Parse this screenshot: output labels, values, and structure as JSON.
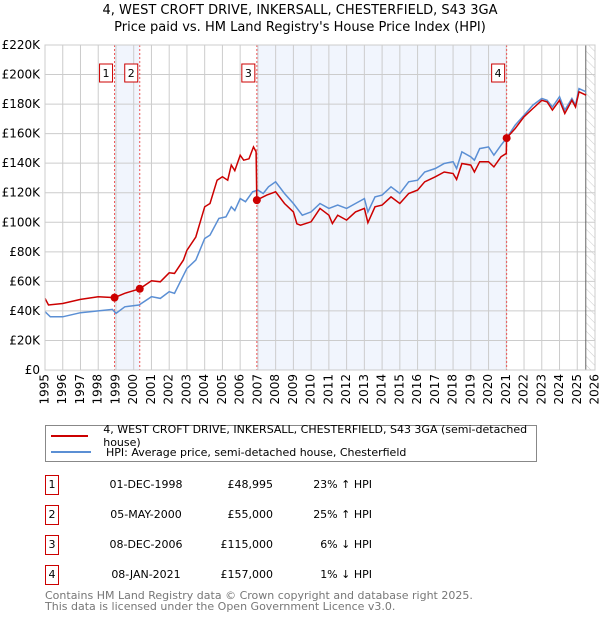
{
  "title_line1": "4, WEST CROFT DRIVE, INKERSALL, CHESTERFIELD, S43 3GA",
  "title_line2": "Price paid vs. HM Land Registry's House Price Index (HPI)",
  "chart_data": {
    "type": "line",
    "title": "4, WEST CROFT DRIVE, INKERSALL, CHESTERFIELD, S43 3GA — Price paid vs. HM Land Registry's House Price Index (HPI)",
    "xlim": [
      1995,
      2026
    ],
    "ylim": [
      0,
      220000
    ],
    "x_ticks": [
      "1995",
      "1996",
      "1997",
      "1998",
      "1999",
      "2000",
      "2001",
      "2002",
      "2003",
      "2004",
      "2005",
      "2006",
      "2007",
      "2008",
      "2009",
      "2010",
      "2011",
      "2012",
      "2013",
      "2014",
      "2015",
      "2016",
      "2017",
      "2018",
      "2019",
      "2020",
      "2021",
      "2022",
      "2023",
      "2024",
      "2025",
      "2026"
    ],
    "y_ticks": [
      {
        "v": 0,
        "label": "£0"
      },
      {
        "v": 20000,
        "label": "£20K"
      },
      {
        "v": 40000,
        "label": "£40K"
      },
      {
        "v": 60000,
        "label": "£60K"
      },
      {
        "v": 80000,
        "label": "£80K"
      },
      {
        "v": 100000,
        "label": "£100K"
      },
      {
        "v": 120000,
        "label": "£120K"
      },
      {
        "v": 140000,
        "label": "£140K"
      },
      {
        "v": 160000,
        "label": "£160K"
      },
      {
        "v": 180000,
        "label": "£180K"
      },
      {
        "v": 200000,
        "label": "£200K"
      },
      {
        "v": 220000,
        "label": "£220K"
      }
    ],
    "grid": true,
    "shaded_periods": [
      [
        1998.92,
        2000.34
      ],
      [
        2006.94,
        2021.02
      ]
    ],
    "forecast_hatch_from": 2025.48,
    "series": [
      {
        "name": "4, WEST CROFT DRIVE, INKERSALL, CHESTERFIELD, S43 3GA (semi-detached house)",
        "color": "#cc0000",
        "x": [
          1995,
          1995.2,
          1996,
          1997,
          1998,
          1998.92,
          1999.5,
          2000.34,
          2001,
          2001.5,
          2002,
          2002.3,
          2002.8,
          2003,
          2003.5,
          2004,
          2004.3,
          2004.7,
          2005,
          2005.3,
          2005.5,
          2005.7,
          2006,
          2006.2,
          2006.5,
          2006.75,
          2006.9,
          2006.94,
          2007.5,
          2008,
          2008.5,
          2009,
          2009.2,
          2009.4,
          2010,
          2010.5,
          2011,
          2011.2,
          2011.5,
          2012,
          2012.5,
          2013,
          2013.2,
          2013.6,
          2014,
          2014.5,
          2015,
          2015.5,
          2016,
          2016.4,
          2017,
          2017.5,
          2018,
          2018.2,
          2018.5,
          2019,
          2019.2,
          2019.5,
          2020,
          2020.3,
          2020.7,
          2021,
          2021.02,
          2021.5,
          2022,
          2022.5,
          2023,
          2023.3,
          2023.6,
          2024,
          2024.3,
          2024.7,
          2024.9,
          2025.1,
          2025.5
        ],
        "y": [
          48500,
          44000,
          45000,
          47800,
          49600,
          48995,
          51900,
          55000,
          60400,
          59700,
          65800,
          65400,
          74400,
          81000,
          90000,
          110500,
          112700,
          128500,
          130800,
          128500,
          138800,
          135000,
          145400,
          142000,
          143000,
          151000,
          147700,
          115000,
          118400,
          120600,
          112700,
          107000,
          99000,
          98000,
          100300,
          109400,
          104800,
          99200,
          104800,
          101500,
          107000,
          109400,
          99700,
          110500,
          111600,
          117200,
          112700,
          119500,
          121800,
          127400,
          130800,
          134000,
          133000,
          129000,
          139800,
          138700,
          134000,
          141000,
          141000,
          137500,
          144300,
          146600,
          157000,
          163500,
          171400,
          177000,
          182600,
          181500,
          175900,
          182600,
          173600,
          182600,
          178000,
          188300,
          186000
        ]
      },
      {
        "name": "HPI: Average price, semi-detached house, Chesterfield",
        "color": "#5b8fd4",
        "x": [
          1995,
          1995.3,
          1996,
          1997,
          1998,
          1998.8,
          1999,
          1999.5,
          2000.3,
          2001,
          2001.5,
          2002,
          2002.3,
          2003,
          2003.5,
          2004,
          2004.3,
          2004.8,
          2005.2,
          2005.5,
          2005.7,
          2006,
          2006.3,
          2006.7,
          2007,
          2007.3,
          2007.6,
          2008,
          2008.5,
          2009,
          2009.5,
          2010,
          2010.5,
          2011,
          2011.5,
          2012,
          2012.5,
          2013,
          2013.2,
          2013.6,
          2014,
          2014.5,
          2015,
          2015.5,
          2016,
          2016.4,
          2017,
          2017.5,
          2018,
          2018.2,
          2018.5,
          2019,
          2019.2,
          2019.5,
          2020,
          2020.3,
          2020.7,
          2021,
          2021.5,
          2022,
          2022.5,
          2023,
          2023.3,
          2023.6,
          2024,
          2024.3,
          2024.7,
          2024.9,
          2025.1,
          2025.5
        ],
        "y": [
          39500,
          36000,
          36000,
          38800,
          40000,
          41000,
          38300,
          42800,
          44000,
          49600,
          48500,
          53000,
          51900,
          68800,
          74400,
          89000,
          91300,
          102600,
          103700,
          110500,
          108000,
          116000,
          113900,
          120600,
          121800,
          119500,
          124000,
          127400,
          119500,
          112700,
          104800,
          107000,
          112700,
          109400,
          111600,
          109400,
          112700,
          116000,
          107000,
          117200,
          118400,
          124000,
          119500,
          127400,
          128500,
          134000,
          136400,
          139800,
          141000,
          136400,
          147700,
          144300,
          142000,
          149900,
          151000,
          145400,
          152200,
          156700,
          165800,
          172500,
          179300,
          183800,
          182600,
          178000,
          185000,
          175900,
          183800,
          179300,
          190500,
          188300
        ]
      }
    ],
    "transactions": [
      {
        "id": "1",
        "date": "01-DEC-1998",
        "x": 1998.92,
        "price": 48995,
        "price_label": "£48,995",
        "hpi": "23% ↑ HPI"
      },
      {
        "id": "2",
        "date": "05-MAY-2000",
        "x": 2000.34,
        "price": 55000,
        "price_label": "£55,000",
        "hpi": "25% ↑ HPI"
      },
      {
        "id": "3",
        "date": "08-DEC-2006",
        "x": 2006.94,
        "price": 115000,
        "price_label": "£115,000",
        "hpi": "6% ↓ HPI"
      },
      {
        "id": "4",
        "date": "08-JAN-2021",
        "x": 2021.02,
        "price": 157000,
        "price_label": "£157,000",
        "hpi": "1% ↓ HPI"
      }
    ]
  },
  "legend": {
    "property": "4, WEST CROFT DRIVE, INKERSALL, CHESTERFIELD, S43 3GA (semi-detached house)",
    "hpi": "HPI: Average price, semi-detached house, Chesterfield"
  },
  "footer": {
    "line1": "Contains HM Land Registry data © Crown copyright and database right 2025.",
    "line2": "This data is licensed under the Open Government Licence v3.0."
  }
}
